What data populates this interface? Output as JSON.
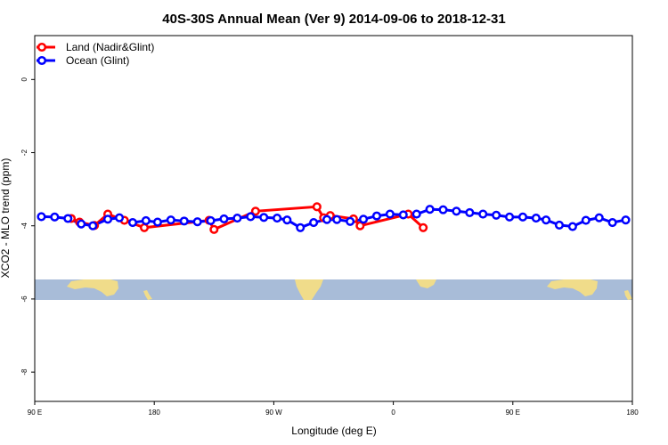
{
  "chart_data": {
    "type": "line",
    "title": "40S-30S Annual Mean (Ver 9)   2014-09-06 to 2018-12-31",
    "xlabel": "Longitude (deg E)",
    "ylabel": "XCO2 - MLO trend (ppm)",
    "xlim": [
      90,
      450
    ],
    "ylim": [
      -8.8,
      1.2
    ],
    "x_ticks": [
      90,
      162,
      234,
      306,
      378,
      450
    ],
    "x_tick_labels": [
      "90 E",
      "180",
      "90 W",
      "0",
      "90 E",
      "180"
    ],
    "y_ticks": [
      0,
      -2,
      -4,
      -6,
      -8
    ],
    "y_tick_labels": [
      "0",
      "-2",
      "-4",
      "-6",
      "-8"
    ],
    "grid": false,
    "legend_position": "top-left",
    "series": [
      {
        "name": "Land (Nadir&Glint)",
        "color": "#ff0000",
        "x": [
          112,
          117,
          126,
          134,
          144,
          156,
          195,
          198,
          223,
          260,
          264,
          268,
          282,
          286,
          315,
          324
        ],
        "y": [
          -3.8,
          -3.9,
          -3.99,
          -3.68,
          -3.85,
          -4.05,
          -3.85,
          -4.1,
          -3.6,
          -3.48,
          -3.78,
          -3.72,
          -3.81,
          -4.0,
          -3.68,
          -4.05
        ]
      },
      {
        "name": "Ocean (Glint)",
        "color": "#0000ff",
        "x": [
          94,
          102,
          110,
          118,
          125,
          134,
          141,
          149,
          157,
          164,
          172,
          180,
          188,
          196,
          204,
          212,
          220,
          228,
          236,
          242,
          250,
          258,
          266,
          272,
          280,
          288,
          296,
          304,
          312,
          320,
          328,
          336,
          344,
          352,
          360,
          368,
          376,
          384,
          392,
          398,
          406,
          414,
          422,
          430,
          438,
          446
        ],
        "y": [
          -3.75,
          -3.76,
          -3.8,
          -3.95,
          -4.0,
          -3.82,
          -3.78,
          -3.91,
          -3.86,
          -3.9,
          -3.84,
          -3.87,
          -3.89,
          -3.86,
          -3.81,
          -3.79,
          -3.75,
          -3.77,
          -3.79,
          -3.84,
          -4.05,
          -3.91,
          -3.83,
          -3.83,
          -3.88,
          -3.82,
          -3.73,
          -3.68,
          -3.7,
          -3.68,
          -3.55,
          -3.56,
          -3.6,
          -3.64,
          -3.68,
          -3.71,
          -3.76,
          -3.76,
          -3.79,
          -3.84,
          -3.98,
          -4.02,
          -3.85,
          -3.78,
          -3.91,
          -3.84
        ]
      }
    ]
  }
}
